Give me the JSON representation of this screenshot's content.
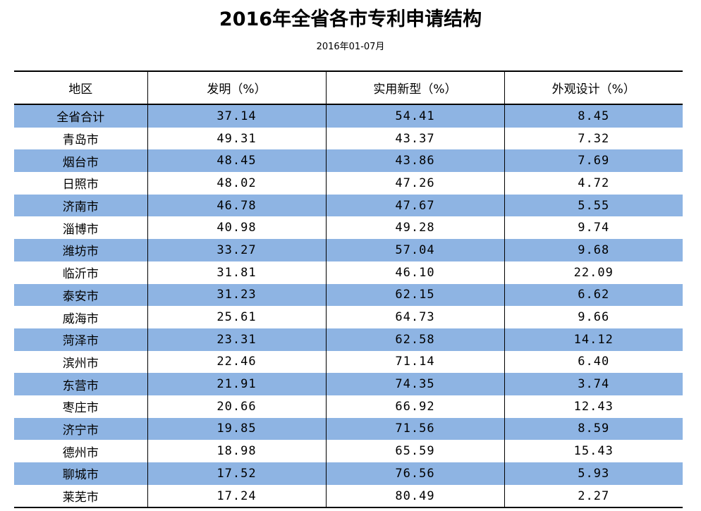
{
  "title": "2016年全省各市专利申请结构",
  "subtitle": "2016年01-07月",
  "table": {
    "headers": [
      "地区",
      "发明（%）",
      "实用新型（%）",
      "外观设计（%）"
    ],
    "rows": [
      [
        "全省合计",
        "37.14",
        "54.41",
        "8.45"
      ],
      [
        "青岛市",
        "49.31",
        "43.37",
        "7.32"
      ],
      [
        "烟台市",
        "48.45",
        "43.86",
        "7.69"
      ],
      [
        "日照市",
        "48.02",
        "47.26",
        "4.72"
      ],
      [
        "济南市",
        "46.78",
        "47.67",
        "5.55"
      ],
      [
        "淄博市",
        "40.98",
        "49.28",
        "9.74"
      ],
      [
        "潍坊市",
        "33.27",
        "57.04",
        "9.68"
      ],
      [
        "临沂市",
        "31.81",
        "46.10",
        "22.09"
      ],
      [
        "泰安市",
        "31.23",
        "62.15",
        "6.62"
      ],
      [
        "威海市",
        "25.61",
        "64.73",
        "9.66"
      ],
      [
        "菏泽市",
        "23.31",
        "62.58",
        "14.12"
      ],
      [
        "滨州市",
        "22.46",
        "71.14",
        "6.40"
      ],
      [
        "东营市",
        "21.91",
        "74.35",
        "3.74"
      ],
      [
        "枣庄市",
        "20.66",
        "66.92",
        "12.43"
      ],
      [
        "济宁市",
        "19.85",
        "71.56",
        "8.59"
      ],
      [
        "德州市",
        "18.98",
        "65.59",
        "15.43"
      ],
      [
        "聊城市",
        "17.52",
        "76.56",
        "5.93"
      ],
      [
        "莱芜市",
        "17.24",
        "80.49",
        "2.27"
      ]
    ]
  },
  "colors": {
    "band": "#8eb4e3",
    "rule": "#000000"
  }
}
